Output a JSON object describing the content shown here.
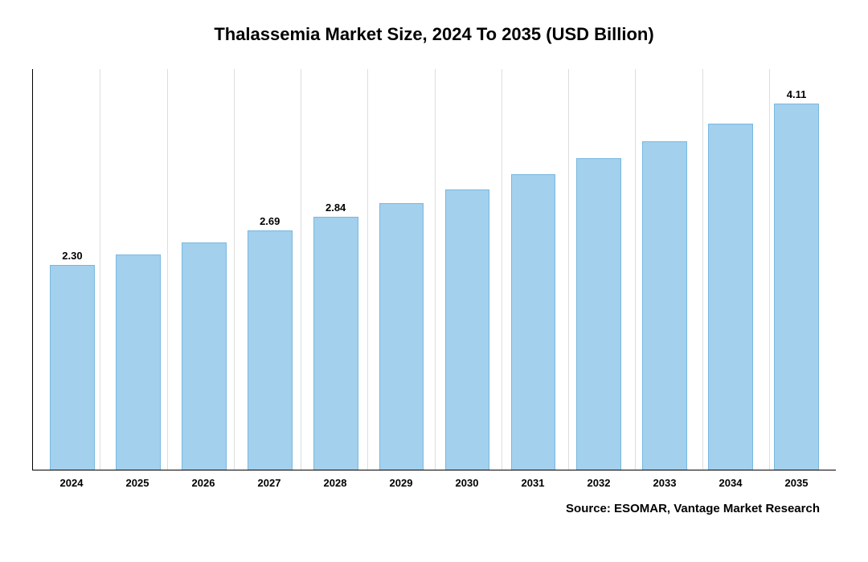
{
  "chart": {
    "type": "bar",
    "title": "Thalassemia Market Size, 2024 To 2035 (USD Billion)",
    "title_fontsize": 22,
    "background_color": "#ffffff",
    "bar_color": "#a3d0ed",
    "bar_border_color": "#78b8e0",
    "grid_color": "#dddddd",
    "axis_color": "#000000",
    "text_color": "#000000",
    "bar_width_pct": 68,
    "years": [
      "2024",
      "2025",
      "2026",
      "2027",
      "2028",
      "2029",
      "2030",
      "2031",
      "2032",
      "2033",
      "2034",
      "2035"
    ],
    "values": [
      2.3,
      2.42,
      2.55,
      2.69,
      2.84,
      2.99,
      3.15,
      3.32,
      3.5,
      3.69,
      3.89,
      4.11
    ],
    "shown_labels": {
      "0": "2.30",
      "3": "2.69",
      "4": "2.84",
      "11": "4.11"
    },
    "ylim": [
      0,
      4.5
    ],
    "x_tick_fontsize": 13,
    "value_label_fontsize": 13,
    "source_fontsize": 15
  },
  "source_text": "Source: ESOMAR, Vantage Market Research"
}
